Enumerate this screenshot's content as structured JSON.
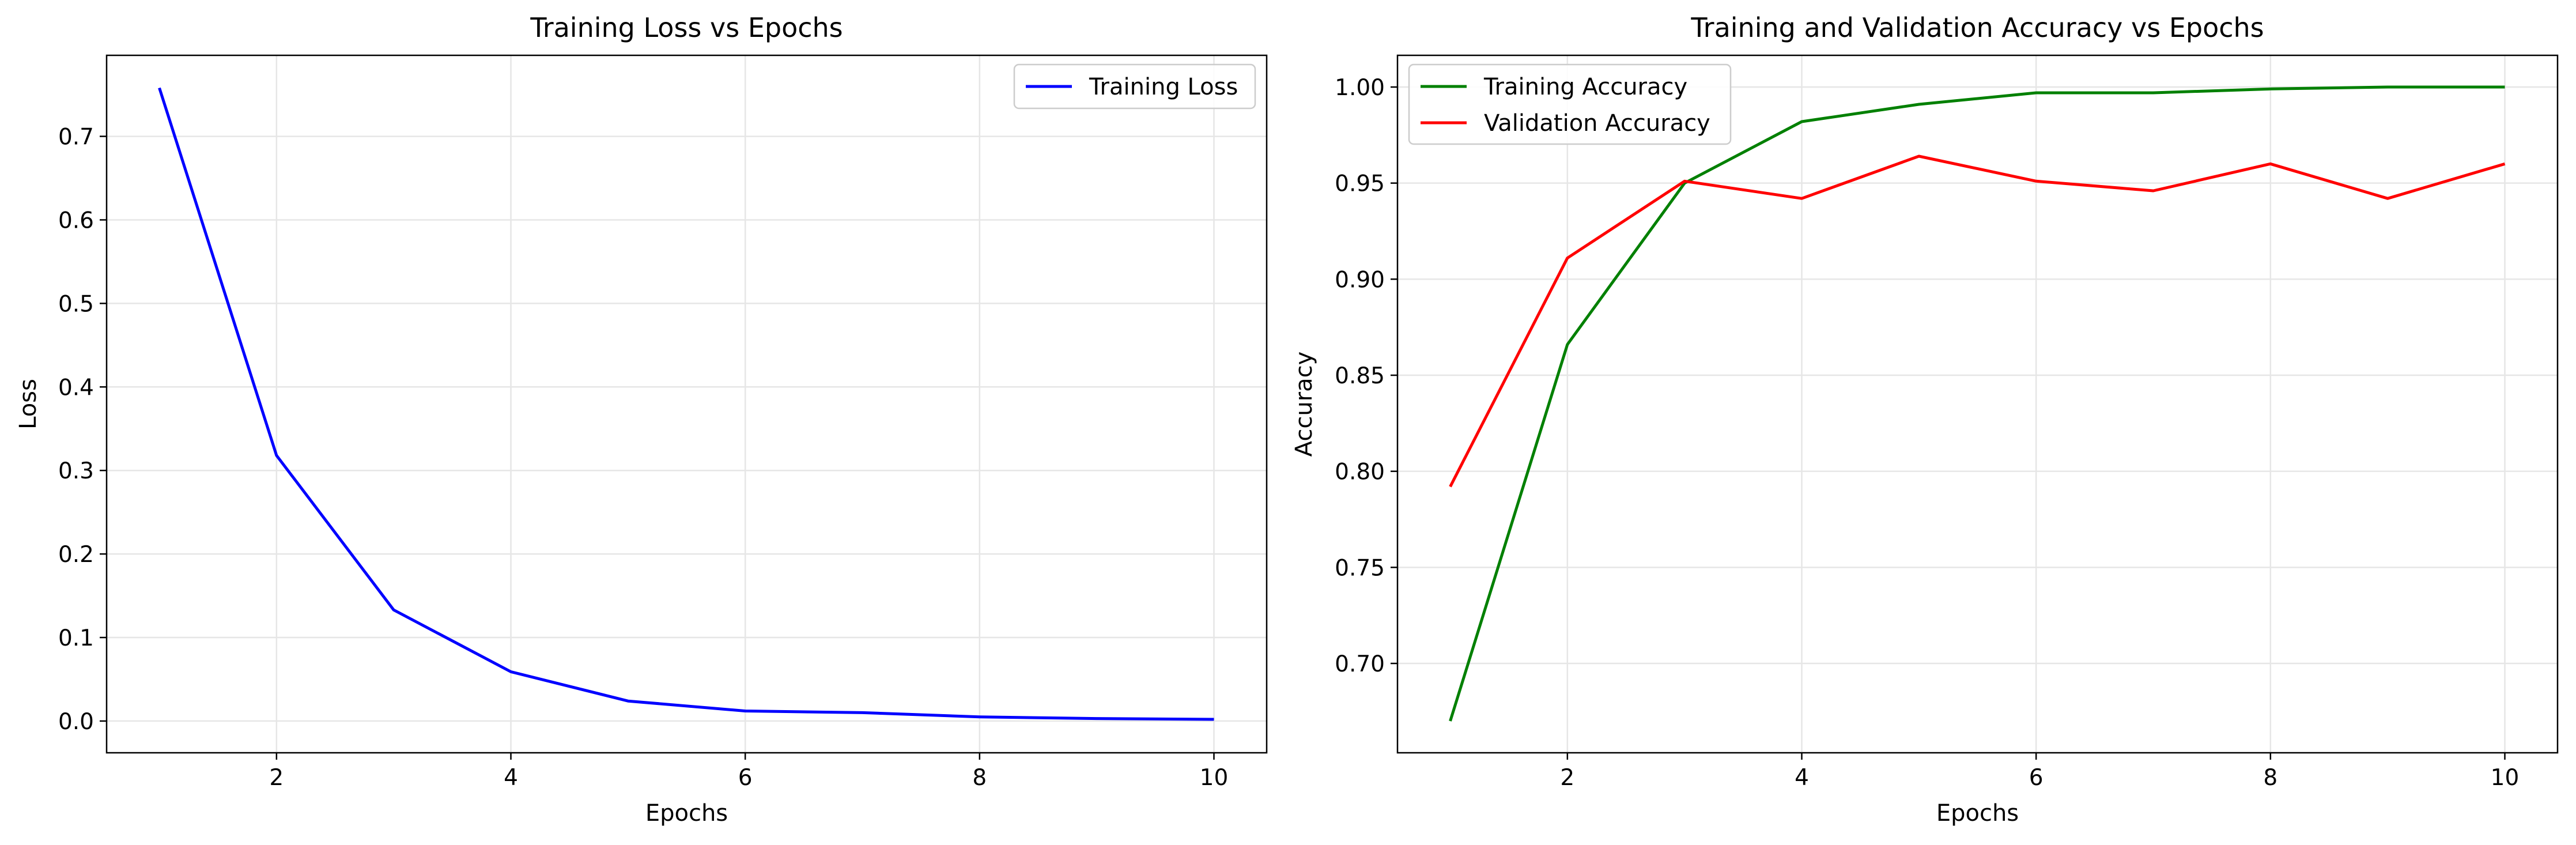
{
  "chart_data": [
    {
      "type": "line",
      "title": "Training Loss vs Epochs",
      "xlabel": "Epochs",
      "ylabel": "Loss",
      "xlim": [
        0.55,
        10.45
      ],
      "ylim": [
        -0.038,
        0.797
      ],
      "xticks": [
        2,
        4,
        6,
        8,
        10
      ],
      "yticks": [
        0.0,
        0.1,
        0.2,
        0.3,
        0.4,
        0.5,
        0.6,
        0.7
      ],
      "ytick_decimals": 1,
      "grid": true,
      "legend_position": "top-right",
      "x": [
        1,
        2,
        3,
        4,
        5,
        6,
        7,
        8,
        9,
        10
      ],
      "series": [
        {
          "name": "Training Loss",
          "color": "#0000ff",
          "values": [
            0.758,
            0.318,
            0.133,
            0.059,
            0.024,
            0.012,
            0.01,
            0.005,
            0.003,
            0.002
          ]
        }
      ]
    },
    {
      "type": "line",
      "title": "Training and Validation Accuracy vs Epochs",
      "xlabel": "Epochs",
      "ylabel": "Accuracy",
      "xlim": [
        0.55,
        10.45
      ],
      "ylim": [
        0.6535,
        1.0165
      ],
      "xticks": [
        2,
        4,
        6,
        8,
        10
      ],
      "yticks": [
        0.7,
        0.75,
        0.8,
        0.85,
        0.9,
        0.95,
        1.0
      ],
      "ytick_decimals": 2,
      "grid": true,
      "legend_position": "top-left",
      "x": [
        1,
        2,
        3,
        4,
        5,
        6,
        7,
        8,
        9,
        10
      ],
      "series": [
        {
          "name": "Training Accuracy",
          "color": "#008000",
          "values": [
            0.67,
            0.866,
            0.95,
            0.982,
            0.991,
            0.997,
            0.997,
            0.999,
            1.0,
            1.0
          ]
        },
        {
          "name": "Validation Accuracy",
          "color": "#ff0000",
          "values": [
            0.792,
            0.911,
            0.951,
            0.942,
            0.964,
            0.951,
            0.946,
            0.96,
            0.942,
            0.96
          ]
        }
      ]
    }
  ]
}
